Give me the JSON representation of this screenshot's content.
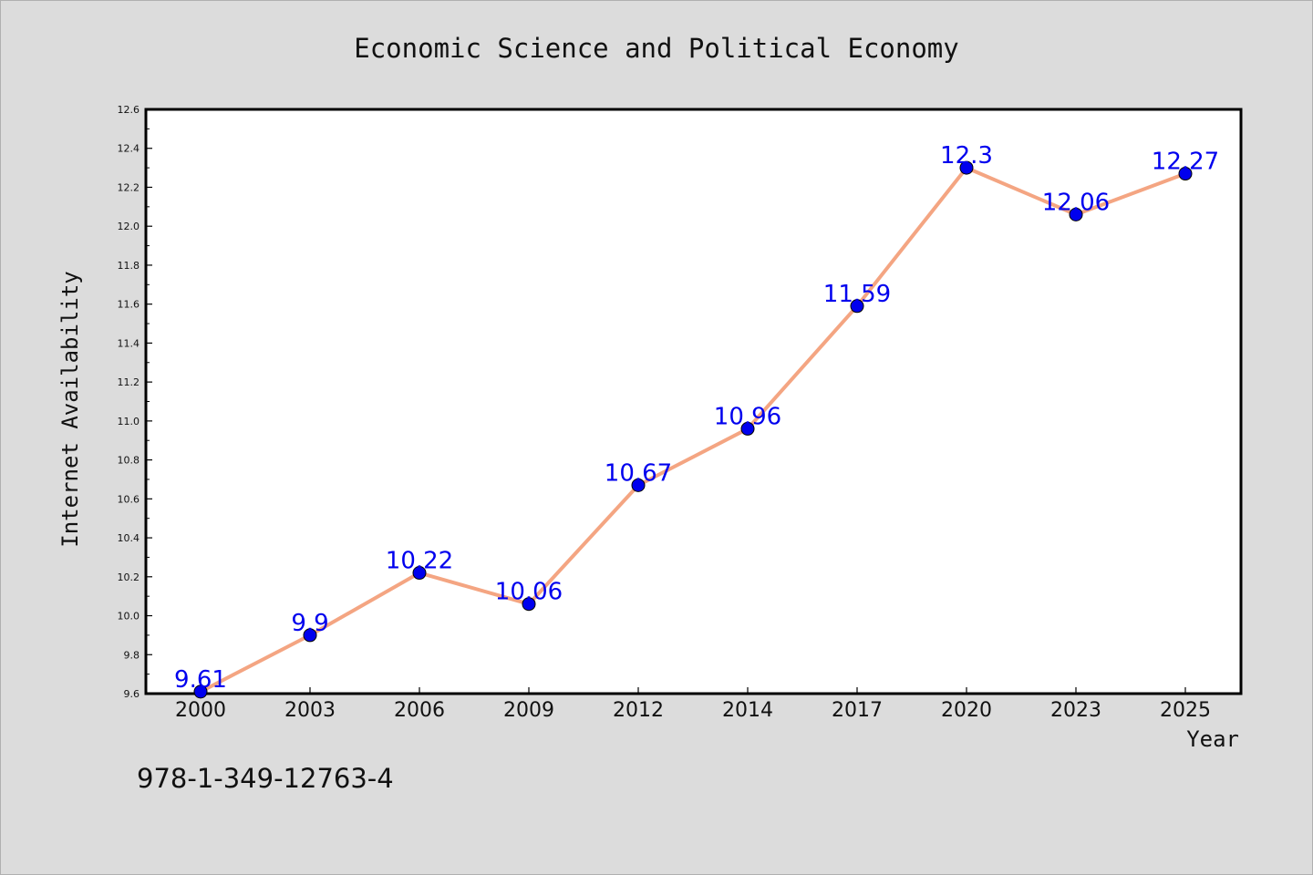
{
  "chart_data": {
    "type": "line",
    "title": "Economic Science and Political Economy",
    "xlabel": "Year",
    "ylabel": "Internet Availability",
    "categories": [
      "2000",
      "2003",
      "2006",
      "2009",
      "2012",
      "2014",
      "2017",
      "2020",
      "2023",
      "2025"
    ],
    "series": [
      {
        "values": [
          9.61,
          9.9,
          10.22,
          10.06,
          10.67,
          10.96,
          11.59,
          12.3,
          12.06,
          12.27
        ]
      }
    ],
    "data_labels": [
      "9.61",
      "9.9",
      "10.22",
      "10.06",
      "10.67",
      "10.96",
      "11.59",
      "12.3",
      "12.06",
      "12.27"
    ],
    "ylim": [
      9.6,
      12.6
    ],
    "yticks": [
      "9.6",
      "9.8",
      "10.0",
      "10.2",
      "10.4",
      "10.6",
      "10.8",
      "11.0",
      "11.2",
      "11.4",
      "11.6",
      "11.8",
      "12.0",
      "12.2",
      "12.4",
      "12.6"
    ],
    "grid": false,
    "legend": "none",
    "colors": {
      "line": "#f4a582",
      "marker": "#0000ee",
      "data_label": "#0000ee",
      "background": "#dcdcdc",
      "plot_background": "#ffffff"
    }
  },
  "footnote": "978-1-349-12763-4"
}
